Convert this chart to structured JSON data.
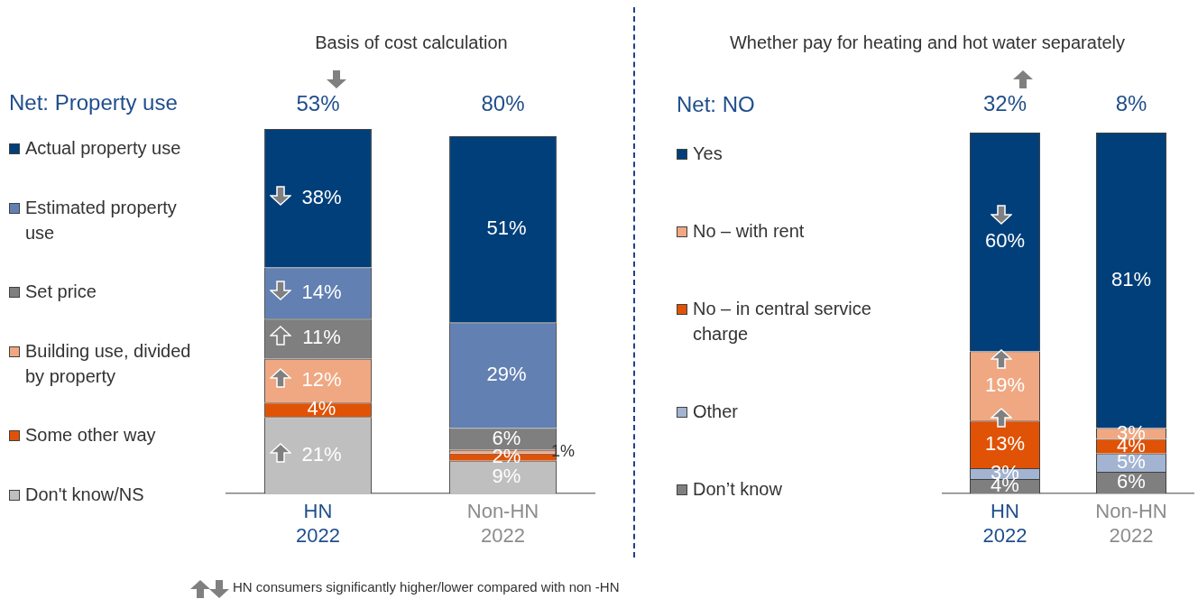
{
  "chart_data": [
    {
      "type": "bar",
      "title": "Basis of cost calculation",
      "stacked": true,
      "legend": "left",
      "tick_labels": "x",
      "categories": [
        "HN 2022",
        "Non-HN 2022"
      ],
      "series": [
        {
          "name": "Don't know/NS",
          "color": "#bfbfbf",
          "values": [
            21,
            9
          ],
          "value_labels": [
            "21%",
            "9%"
          ]
        },
        {
          "name": "Some other way",
          "color": "#e05206",
          "values": [
            4,
            2
          ],
          "value_labels": [
            "4%",
            "2%"
          ]
        },
        {
          "name": "Building use, divided by property",
          "color": "#f0a882",
          "values": [
            12,
            1
          ],
          "value_labels": [
            "12%",
            "1%"
          ]
        },
        {
          "name": "Set price",
          "color": "#7f7f7f",
          "values": [
            11,
            6
          ],
          "value_labels": [
            "11%",
            "6%"
          ]
        },
        {
          "name": "Estimated property use",
          "color": "#6280b2",
          "values": [
            14,
            29
          ],
          "value_labels": [
            "14%",
            "29%"
          ]
        },
        {
          "name": "Actual property use",
          "color": "#003f7a",
          "values": [
            38,
            51
          ],
          "value_labels": [
            "38%",
            "51%"
          ]
        }
      ],
      "annotations": [
        "Net: Property use",
        "53%",
        "80%",
        "HN consumers significantly higher/lower compared with non -HN"
      ]
    },
    {
      "type": "bar",
      "title": "Whether pay for heating and hot water separately",
      "stacked": true,
      "legend": "left",
      "tick_labels": "x",
      "categories": [
        "HN 2022",
        "Non-HN 2022"
      ],
      "series": [
        {
          "name": "Don’t know",
          "color": "#7f7f7f",
          "values": [
            4,
            6
          ],
          "value_labels": [
            "4%",
            "6%"
          ]
        },
        {
          "name": "Other",
          "color": "#a3b4d2",
          "values": [
            3,
            5
          ],
          "value_labels": [
            "3%",
            "5%"
          ]
        },
        {
          "name": "No – in central service charge",
          "color": "#e05206",
          "values": [
            13,
            4
          ],
          "value_labels": [
            "13%",
            "4%"
          ]
        },
        {
          "name": "No – with rent",
          "color": "#f0a882",
          "values": [
            19,
            3
          ],
          "value_labels": [
            "19%",
            "3%"
          ]
        },
        {
          "name": "Yes",
          "color": "#003f7a",
          "values": [
            60,
            81
          ],
          "value_labels": [
            "60%",
            "81%"
          ]
        }
      ],
      "annotations": [
        "Net: NO",
        "32%",
        "8%"
      ]
    }
  ]
}
